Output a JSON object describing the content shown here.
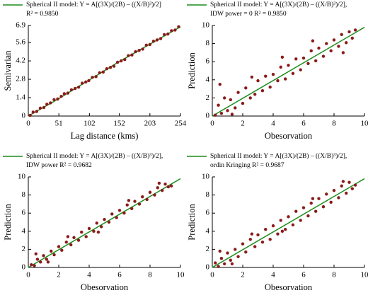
{
  "chart_data": [
    {
      "type": "scatter",
      "xlabel": "Lag distance (kms)",
      "ylabel": "Semivarian",
      "xlim": [
        0,
        254
      ],
      "xticks": [
        0,
        51,
        102,
        152,
        203,
        254
      ],
      "ylim": [
        0,
        6.9
      ],
      "yticks": [
        0,
        1.4,
        2.8,
        4.2,
        5.6,
        6.9
      ],
      "series": [
        {
          "name": "Spherical II model: Y = A[(3X)/(2B) – ((X/B)³)/2]",
          "legend_note": "R² = 0.9850",
          "mark": "line",
          "color": "#1a8c1a",
          "x": [
            0,
            50,
            100,
            150,
            200,
            254
          ],
          "values": [
            0,
            1.3,
            2.7,
            4.1,
            5.4,
            6.8
          ]
        },
        {
          "mark": "point",
          "color": "#8b1a1a",
          "x": [
            3,
            8,
            14,
            20,
            26,
            31,
            37,
            43,
            49,
            55,
            60,
            66,
            72,
            78,
            84,
            90,
            96,
            101,
            107,
            113,
            119,
            125,
            131,
            137,
            143,
            149,
            155,
            161,
            167,
            173,
            179,
            185,
            191,
            197,
            203,
            209,
            215,
            221,
            227,
            233,
            239,
            245,
            251
          ],
          "values": [
            0.05,
            0.3,
            0.35,
            0.6,
            0.65,
            0.9,
            1.0,
            1.25,
            1.3,
            1.5,
            1.7,
            1.75,
            2.0,
            2.1,
            2.2,
            2.5,
            2.6,
            2.7,
            2.95,
            3.0,
            3.3,
            3.35,
            3.6,
            3.7,
            3.8,
            4.1,
            4.2,
            4.3,
            4.6,
            4.65,
            4.9,
            5.0,
            5.1,
            5.4,
            5.45,
            5.7,
            5.8,
            5.9,
            6.2,
            6.25,
            6.5,
            6.55,
            6.8
          ]
        }
      ]
    },
    {
      "type": "scatter",
      "xlabel": "Obesorvation",
      "ylabel": "Prediction",
      "xlim": [
        0,
        10
      ],
      "xticks": [
        0,
        2,
        4,
        6,
        8,
        10
      ],
      "ylim": [
        0,
        10
      ],
      "yticks": [
        0,
        2,
        4,
        6,
        8,
        10
      ],
      "series": [
        {
          "name": "Spherical II model: Y = A[(3X)/(2B) – ((X/B)³)/2],",
          "legend_note": "IDW power = 0 R² = 0.9850",
          "mark": "line",
          "color": "#1a8c1a",
          "x": [
            0,
            10
          ],
          "values": [
            0,
            9.8
          ]
        },
        {
          "mark": "point",
          "color": "#8b1a1a",
          "x": [
            0.2,
            0.4,
            0.6,
            0.8,
            1.0,
            1.2,
            1.5,
            1.7,
            2.0,
            2.2,
            2.5,
            2.8,
            3.0,
            3.3,
            3.5,
            3.8,
            4.0,
            4.3,
            4.5,
            4.8,
            5.0,
            5.3,
            5.5,
            5.8,
            6.0,
            6.3,
            6.5,
            6.8,
            7.0,
            7.3,
            7.5,
            7.8,
            8.0,
            8.3,
            8.5,
            8.8,
            9.0,
            9.2,
            9.4,
            0.5,
            1.3,
            2.6,
            4.6,
            6.6,
            8.6
          ],
          "values": [
            0.1,
            1.2,
            0.3,
            2.0,
            0.6,
            1.8,
            0.9,
            2.6,
            1.4,
            3.1,
            2.0,
            2.4,
            3.9,
            2.8,
            4.4,
            3.2,
            4.6,
            3.9,
            5.4,
            4.1,
            5.6,
            4.7,
            6.3,
            5.1,
            6.4,
            5.8,
            7.2,
            6.1,
            7.5,
            6.6,
            8.0,
            7.2,
            8.4,
            7.7,
            9.0,
            8.1,
            9.3,
            8.6,
            9.5,
            3.5,
            0.2,
            4.3,
            6.5,
            8.3,
            7.0
          ]
        }
      ]
    },
    {
      "type": "scatter",
      "xlabel": "Obesorvation",
      "ylabel": "Prediction",
      "xlim": [
        0,
        10
      ],
      "xticks": [
        0,
        2,
        4,
        6,
        8,
        10
      ],
      "ylim": [
        0,
        10
      ],
      "yticks": [
        0,
        2,
        4,
        6,
        8,
        10
      ],
      "series": [
        {
          "name": "Spherical II model: Y = A[(3X)/(2B) – ((X/B)³)/2],",
          "legend_note": "IDW power R² = 0.9682",
          "mark": "line",
          "color": "#1a8c1a",
          "x": [
            0,
            10
          ],
          "values": [
            0,
            9.8
          ]
        },
        {
          "mark": "point",
          "color": "#8b1a1a",
          "x": [
            0.2,
            0.4,
            0.6,
            0.8,
            1.0,
            1.2,
            1.5,
            1.7,
            2.0,
            2.2,
            2.5,
            2.8,
            3.0,
            3.3,
            3.5,
            3.8,
            4.0,
            4.3,
            4.5,
            4.8,
            5.0,
            5.3,
            5.5,
            5.8,
            6.0,
            6.3,
            6.5,
            6.8,
            7.0,
            7.3,
            7.5,
            7.8,
            8.0,
            8.3,
            8.5,
            8.8,
            9.0,
            9.2,
            9.4,
            0.5,
            1.3,
            2.6,
            4.6,
            6.6,
            8.6
          ],
          "values": [
            0.3,
            0.2,
            0.9,
            0.6,
            1.3,
            0.9,
            1.8,
            1.4,
            2.3,
            1.9,
            2.8,
            2.5,
            3.3,
            3.0,
            3.9,
            3.4,
            4.3,
            4.0,
            4.9,
            4.5,
            5.3,
            5.0,
            5.9,
            5.5,
            6.3,
            6.0,
            6.9,
            6.5,
            7.3,
            7.0,
            7.8,
            7.5,
            8.3,
            8.0,
            8.8,
            8.5,
            9.2,
            8.9,
            9.0,
            1.5,
            0.6,
            3.4,
            3.9,
            7.4,
            9.3
          ]
        }
      ]
    },
    {
      "type": "scatter",
      "xlabel": "Obesorvation",
      "ylabel": "Prediction",
      "xlim": [
        0,
        10
      ],
      "xticks": [
        0,
        2,
        4,
        6,
        8,
        10
      ],
      "ylim": [
        0,
        10
      ],
      "yticks": [
        0,
        2,
        4,
        6,
        8,
        10
      ],
      "series": [
        {
          "name": "Spherical II model: Y = A[(3X)/(2B) – ((X/B)³)/2],",
          "legend_note": "ordin Kringing R² = 0.9687",
          "mark": "line",
          "color": "#1a8c1a",
          "x": [
            0,
            10
          ],
          "values": [
            0,
            9.8
          ]
        },
        {
          "mark": "point",
          "color": "#8b1a1a",
          "x": [
            0.2,
            0.4,
            0.6,
            0.8,
            1.0,
            1.2,
            1.5,
            1.7,
            2.0,
            2.2,
            2.5,
            2.8,
            3.0,
            3.3,
            3.5,
            3.8,
            4.0,
            4.3,
            4.5,
            4.8,
            5.0,
            5.3,
            5.5,
            5.8,
            6.0,
            6.3,
            6.5,
            6.8,
            7.0,
            7.3,
            7.5,
            7.8,
            8.0,
            8.3,
            8.5,
            8.8,
            9.0,
            9.2,
            9.4,
            0.5,
            1.3,
            2.6,
            4.6,
            6.6,
            8.6
          ],
          "values": [
            0.5,
            0.1,
            1.0,
            0.4,
            1.6,
            0.8,
            2.0,
            1.2,
            2.6,
            1.7,
            3.1,
            2.3,
            3.6,
            2.8,
            4.2,
            3.1,
            4.6,
            3.7,
            5.2,
            4.2,
            5.6,
            4.7,
            6.2,
            5.2,
            6.6,
            5.7,
            7.1,
            6.2,
            7.6,
            6.7,
            8.1,
            7.2,
            8.5,
            7.7,
            9.0,
            8.2,
            9.4,
            8.7,
            9.1,
            1.8,
            0.4,
            3.7,
            4.0,
            7.6,
            9.5
          ]
        }
      ]
    }
  ]
}
